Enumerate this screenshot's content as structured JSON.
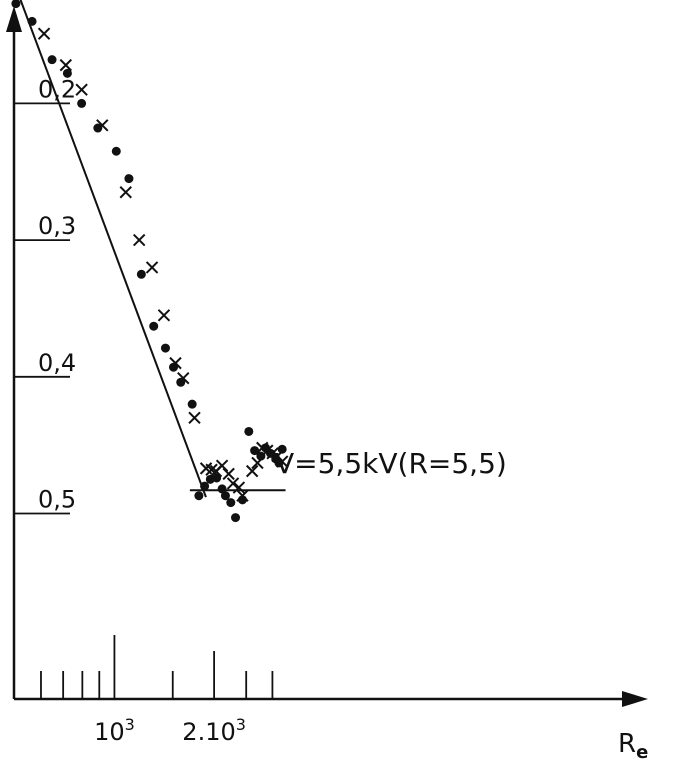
{
  "chart_data": {
    "type": "scatter",
    "x_scale": "log",
    "xlim": [
      500,
      3000
    ],
    "ylim": [
      0.1,
      0.5
    ],
    "grid": false,
    "legend": "none",
    "x_axis_label": "R",
    "x_axis_label_subscript": "e",
    "y_tick_labels": [
      {
        "value": 0.5,
        "label": "0,5"
      },
      {
        "value": 0.4,
        "label": "0,4"
      },
      {
        "value": 0.3,
        "label": "0,3"
      },
      {
        "value": 0.2,
        "label": "0,2"
      }
    ],
    "x_tick_labels": [
      {
        "value": 1000,
        "label_base": "10",
        "label_sup": "3"
      },
      {
        "value": 2000,
        "label_base": "2.10",
        "label_sup": "3"
      }
    ],
    "x_minor_ticks": [
      600,
      700,
      800,
      900,
      1000,
      1500,
      2000,
      2500,
      3000
    ],
    "annotation": "V=5,5kV(R=5,5)",
    "series": [
      {
        "marker": "dot",
        "points": [
          [
            504,
            0.127
          ],
          [
            564,
            0.14
          ],
          [
            648,
            0.168
          ],
          [
            721,
            0.178
          ],
          [
            796,
            0.2
          ],
          [
            891,
            0.218
          ],
          [
            1013,
            0.235
          ],
          [
            1106,
            0.255
          ],
          [
            1206,
            0.325
          ],
          [
            1314,
            0.363
          ],
          [
            1426,
            0.379
          ],
          [
            1508,
            0.393
          ],
          [
            1586,
            0.404
          ],
          [
            1717,
            0.42
          ],
          [
            1799,
            0.487
          ],
          [
            1872,
            0.48
          ],
          [
            1948,
            0.475
          ],
          [
            2036,
            0.474
          ],
          [
            2114,
            0.482
          ],
          [
            2164,
            0.487
          ],
          [
            2246,
            0.492
          ],
          [
            2321,
            0.503
          ],
          [
            2436,
            0.49
          ],
          [
            2546,
            0.44
          ],
          [
            2651,
            0.454
          ],
          [
            2769,
            0.458
          ],
          [
            2861,
            0.452
          ],
          [
            2960,
            0.456
          ],
          [
            3070,
            0.46
          ],
          [
            3139,
            0.463
          ],
          [
            3211,
            0.453
          ]
        ]
      },
      {
        "marker": "cross",
        "points": [
          [
            542,
            0.118
          ],
          [
            613,
            0.149
          ],
          [
            713,
            0.172
          ],
          [
            796,
            0.19
          ],
          [
            919,
            0.216
          ],
          [
            1082,
            0.265
          ],
          [
            1188,
            0.3
          ],
          [
            1299,
            0.32
          ],
          [
            1411,
            0.355
          ],
          [
            1529,
            0.39
          ],
          [
            1614,
            0.401
          ],
          [
            1745,
            0.43
          ],
          [
            1891,
            0.467
          ],
          [
            1965,
            0.468
          ],
          [
            2026,
            0.469
          ],
          [
            2114,
            0.465
          ],
          [
            2213,
            0.471
          ],
          [
            2281,
            0.478
          ],
          [
            2376,
            0.481
          ],
          [
            2436,
            0.487
          ],
          [
            2606,
            0.469
          ],
          [
            2704,
            0.463
          ],
          [
            2795,
            0.452
          ],
          [
            2895,
            0.454
          ],
          [
            3004,
            0.456
          ],
          [
            3108,
            0.458
          ],
          [
            3211,
            0.462
          ]
        ]
      }
    ],
    "fit_lines": [
      {
        "points": [
          [
            520,
            0.124
          ],
          [
            1890,
            0.488
          ]
        ]
      },
      {
        "points": [
          [
            1690,
            0.483
          ],
          [
            3287,
            0.483
          ]
        ]
      }
    ]
  }
}
